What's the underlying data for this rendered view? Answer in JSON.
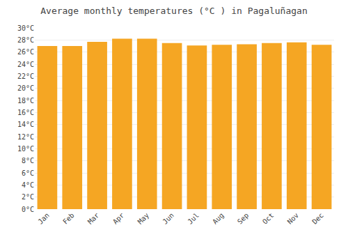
{
  "chart_data": {
    "type": "bar",
    "title": "Average monthly temperatures (°C ) in Pagaluñagan",
    "categories": [
      "Jan",
      "Feb",
      "Mar",
      "Apr",
      "May",
      "Jun",
      "Jul",
      "Aug",
      "Sep",
      "Oct",
      "Nov",
      "Dec"
    ],
    "values": [
      27.0,
      27.0,
      27.7,
      28.2,
      28.2,
      27.5,
      27.1,
      27.2,
      27.3,
      27.5,
      27.6,
      27.2
    ],
    "color": "#F5A623",
    "ylim": [
      0,
      30
    ],
    "yticks": [
      {
        "value": 0,
        "label": "0°C"
      },
      {
        "value": 2,
        "label": "2°C"
      },
      {
        "value": 4,
        "label": "4°C"
      },
      {
        "value": 6,
        "label": "6°C"
      },
      {
        "value": 8,
        "label": "8°C"
      },
      {
        "value": 10,
        "label": "10°C"
      },
      {
        "value": 12,
        "label": "12°C"
      },
      {
        "value": 14,
        "label": "14°C"
      },
      {
        "value": 16,
        "label": "16°C"
      },
      {
        "value": 18,
        "label": "18°C"
      },
      {
        "value": 20,
        "label": "20°C"
      },
      {
        "value": 22,
        "label": "22°C"
      },
      {
        "value": 24,
        "label": "24°C"
      },
      {
        "value": 26,
        "label": "26°C"
      },
      {
        "value": 28,
        "label": "28°C"
      },
      {
        "value": 30,
        "label": "30°C"
      }
    ],
    "grid": true
  }
}
